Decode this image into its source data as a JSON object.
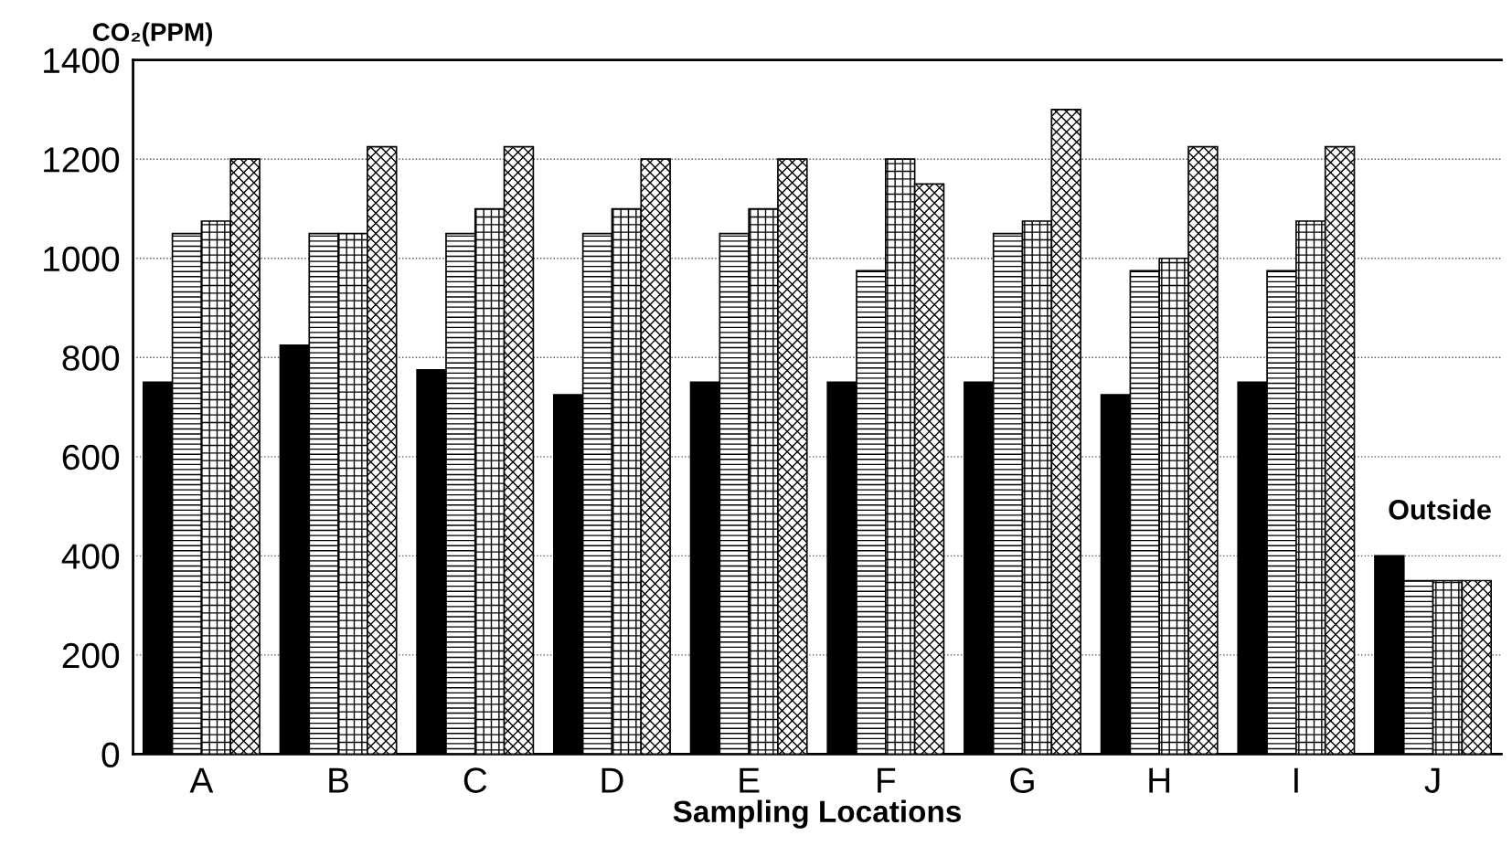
{
  "chart_data": {
    "type": "bar",
    "xlabel": "Sampling Locations",
    "ylabel": "CO₂(PPM)",
    "categories": [
      "A",
      "B",
      "C",
      "D",
      "E",
      "F",
      "G",
      "H",
      "I",
      "J"
    ],
    "series": [
      {
        "color": "#000000",
        "values": [
          750,
          825,
          775,
          725,
          750,
          750,
          750,
          725,
          750,
          400
        ]
      },
      {
        "color": "#000000",
        "values": [
          1050,
          1050,
          1050,
          1050,
          1050,
          975,
          1050,
          975,
          975,
          350
        ]
      },
      {
        "color": "#000000",
        "values": [
          1075,
          1050,
          1100,
          1100,
          1100,
          1200,
          1075,
          1000,
          1075,
          350
        ]
      },
      {
        "color": "#000000",
        "values": [
          1200,
          1225,
          1225,
          1200,
          1200,
          1150,
          1300,
          1225,
          1225,
          350
        ]
      }
    ],
    "ylim": [
      0,
      1400
    ],
    "yticks": [
      0,
      200,
      400,
      600,
      800,
      1000,
      1200,
      1400
    ],
    "grid": "y",
    "legend": false,
    "annotations": [
      "Outside"
    ]
  }
}
